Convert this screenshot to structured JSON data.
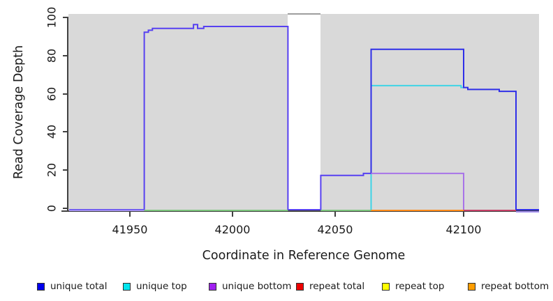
{
  "chart_data": {
    "type": "line",
    "subtype": "step-coverage",
    "title": "",
    "xlabel": "Coordinate in Reference Genome",
    "ylabel": "Read Coverage Depth",
    "xticks": [
      41950,
      42000,
      42050,
      42100
    ],
    "yticks": [
      0,
      20,
      40,
      60,
      80,
      100
    ],
    "xlim": [
      41920,
      42136
    ],
    "ylim": [
      0,
      100
    ],
    "grid": "off",
    "plot_background": "#d9d9d9",
    "gap_region": {
      "from": 42027,
      "to": 42043,
      "note": "white band with gray cap, no coverage data"
    },
    "series": [
      {
        "name": "unique top",
        "color": "#3fd4e6",
        "points": [
          [
            42064,
            0
          ],
          [
            42064,
            65
          ],
          [
            42099,
            65
          ],
          [
            42099,
            64
          ],
          [
            42100,
            64
          ]
        ]
      },
      {
        "name": "unique total (left segment)",
        "color": "#5741f1",
        "points": [
          [
            41920,
            0
          ],
          [
            41957,
            0
          ],
          [
            41957,
            93
          ],
          [
            41959,
            93
          ],
          [
            41959,
            94
          ],
          [
            41961,
            94
          ],
          [
            41961,
            95
          ],
          [
            41981,
            95
          ],
          [
            41981,
            97
          ],
          [
            41983,
            97
          ],
          [
            41983,
            95
          ],
          [
            41986,
            95
          ],
          [
            41986,
            96
          ],
          [
            42027,
            96
          ],
          [
            42027,
            0
          ],
          [
            42043,
            0
          ],
          [
            42043,
            18
          ],
          [
            42061,
            18
          ],
          [
            42061,
            19
          ],
          [
            42064,
            19
          ]
        ]
      },
      {
        "name": "unique total (right segment)",
        "color": "#2f2fe8",
        "points": [
          [
            42064,
            19
          ],
          [
            42064,
            84
          ],
          [
            42100,
            84
          ],
          [
            42100,
            64
          ],
          [
            42102,
            64
          ],
          [
            42102,
            63
          ],
          [
            42117,
            63
          ],
          [
            42117,
            62
          ],
          [
            42125,
            62
          ],
          [
            42125,
            0
          ],
          [
            42136,
            0
          ]
        ]
      },
      {
        "name": "unique bottom",
        "color": "#a873e8",
        "points": [
          [
            42064,
            19
          ],
          [
            42100,
            19
          ],
          [
            42100,
            0
          ]
        ]
      }
    ],
    "baseline_segments": [
      {
        "name": "unique bottom at 0",
        "from": 41920,
        "to": 41957,
        "color": "#a18ef2",
        "dy": 1
      },
      {
        "name": "repeat top at 0",
        "from": 41957,
        "to": 42027,
        "color": "#7cc57c",
        "dy": 1
      },
      {
        "name": "repeat top at 0",
        "from": 42043,
        "to": 42064,
        "color": "#7cc57c",
        "dy": 1
      },
      {
        "name": "repeat bottom at 0",
        "from": 42064,
        "to": 42100,
        "color": "#ff8c1a",
        "dy": 1
      },
      {
        "name": "repeat total at 0",
        "from": 42100,
        "to": 42125,
        "color": "#c74067",
        "dy": 1
      },
      {
        "name": "unique bottom at 0",
        "from": 42125,
        "to": 42136,
        "color": "#a18ef2",
        "dy": 3
      }
    ]
  },
  "axes": {
    "x_title": "Coordinate in Reference Genome",
    "y_title": "Read Coverage Depth"
  },
  "legend": {
    "items": [
      {
        "label": "unique total",
        "color": "#0000ee"
      },
      {
        "label": "unique top",
        "color": "#00e5ee"
      },
      {
        "label": "unique bottom",
        "color": "#a020f0"
      },
      {
        "label": "repeat total",
        "color": "#ee0000"
      },
      {
        "label": "repeat top",
        "color": "#ffff00"
      },
      {
        "label": "repeat bottom",
        "color": "#ff9d00"
      }
    ]
  }
}
